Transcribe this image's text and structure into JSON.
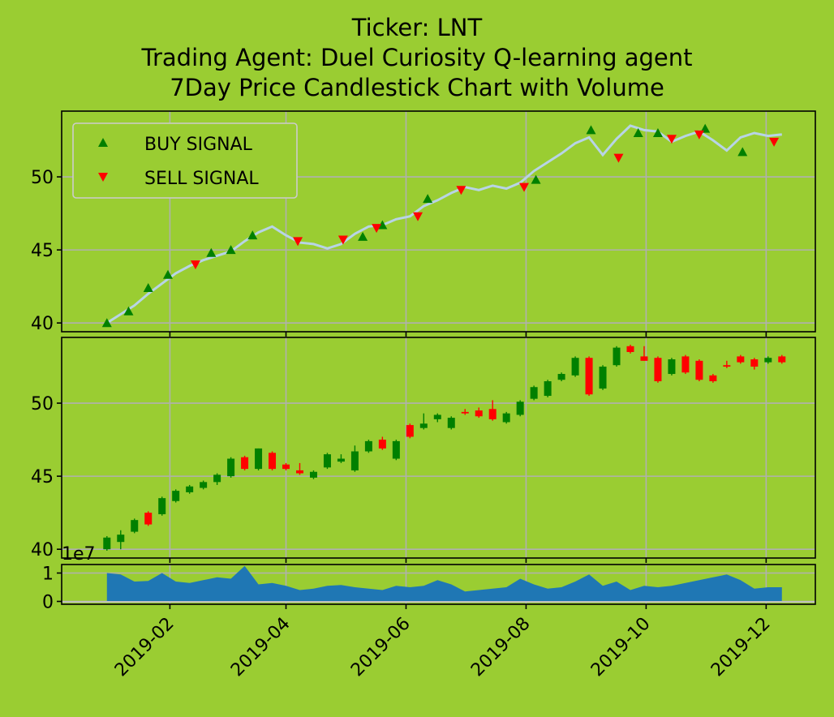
{
  "title": {
    "line1": "Ticker: LNT",
    "line2": "Trading Agent: Duel Curiosity Q-learning agent",
    "line3": "7Day Price Candlestick Chart with Volume"
  },
  "colors": {
    "background": "#9acd32",
    "price_line": "#b8d4e6",
    "buy": "#008000",
    "sell": "#ff0000",
    "volume": "#1f77b4",
    "grid": "#b0b0b0"
  },
  "chart_data": [
    {
      "type": "line",
      "panel": "price",
      "legend": [
        "BUY SIGNAL",
        "SELL SIGNAL"
      ],
      "legend_position": "top-left",
      "ylim": [
        39.4,
        54.5
      ],
      "yticks": [
        "40",
        "45",
        "50"
      ],
      "grid": true,
      "price": [
        [
          "2018-12-31",
          40.0
        ],
        [
          "2019-01-07",
          40.6
        ],
        [
          "2019-01-14",
          41.2
        ],
        [
          "2019-01-21",
          42.0
        ],
        [
          "2019-01-28",
          42.7
        ],
        [
          "2019-02-04",
          43.4
        ],
        [
          "2019-02-11",
          43.9
        ],
        [
          "2019-02-18",
          44.3
        ],
        [
          "2019-02-25",
          44.6
        ],
        [
          "2019-03-04",
          44.9
        ],
        [
          "2019-03-11",
          45.6
        ],
        [
          "2019-03-18",
          46.2
        ],
        [
          "2019-03-25",
          46.6
        ],
        [
          "2019-04-01",
          46.0
        ],
        [
          "2019-04-08",
          45.5
        ],
        [
          "2019-04-15",
          45.4
        ],
        [
          "2019-04-22",
          45.1
        ],
        [
          "2019-04-29",
          45.4
        ],
        [
          "2019-05-06",
          46.1
        ],
        [
          "2019-05-13",
          46.6
        ],
        [
          "2019-05-20",
          46.7
        ],
        [
          "2019-05-27",
          47.1
        ],
        [
          "2019-06-03",
          47.3
        ],
        [
          "2019-06-10",
          48.0
        ],
        [
          "2019-06-17",
          48.4
        ],
        [
          "2019-06-24",
          48.9
        ],
        [
          "2019-07-01",
          49.3
        ],
        [
          "2019-07-08",
          49.1
        ],
        [
          "2019-07-15",
          49.4
        ],
        [
          "2019-07-22",
          49.2
        ],
        [
          "2019-07-29",
          49.6
        ],
        [
          "2019-08-05",
          50.4
        ],
        [
          "2019-08-12",
          51.0
        ],
        [
          "2019-08-19",
          51.6
        ],
        [
          "2019-08-26",
          52.3
        ],
        [
          "2019-09-02",
          52.7
        ],
        [
          "2019-09-09",
          51.5
        ],
        [
          "2019-09-16",
          52.6
        ],
        [
          "2019-09-23",
          53.5
        ],
        [
          "2019-09-30",
          53.2
        ],
        [
          "2019-10-07",
          53.1
        ],
        [
          "2019-10-14",
          52.4
        ],
        [
          "2019-10-21",
          52.8
        ],
        [
          "2019-10-28",
          53.1
        ],
        [
          "2019-11-04",
          52.5
        ],
        [
          "2019-11-11",
          51.8
        ],
        [
          "2019-11-18",
          52.7
        ],
        [
          "2019-11-25",
          53.0
        ],
        [
          "2019-12-02",
          52.8
        ],
        [
          "2019-12-09",
          52.9
        ]
      ],
      "buy_signals": [
        [
          "2018-12-31",
          40.0
        ],
        [
          "2019-01-11",
          40.8
        ],
        [
          "2019-01-21",
          42.4
        ],
        [
          "2019-01-31",
          43.3
        ],
        [
          "2019-02-22",
          44.8
        ],
        [
          "2019-03-04",
          45.0
        ],
        [
          "2019-03-15",
          46.0
        ],
        [
          "2019-05-10",
          45.9
        ],
        [
          "2019-05-20",
          46.7
        ],
        [
          "2019-06-12",
          48.5
        ],
        [
          "2019-08-06",
          49.8
        ],
        [
          "2019-09-03",
          53.2
        ],
        [
          "2019-09-27",
          53.0
        ],
        [
          "2019-10-07",
          53.0
        ],
        [
          "2019-10-31",
          53.3
        ],
        [
          "2019-11-19",
          51.7
        ]
      ],
      "sell_signals": [
        [
          "2019-02-14",
          44.0
        ],
        [
          "2019-04-07",
          45.6
        ],
        [
          "2019-04-30",
          45.7
        ],
        [
          "2019-05-17",
          46.5
        ],
        [
          "2019-06-07",
          47.3
        ],
        [
          "2019-06-29",
          49.1
        ],
        [
          "2019-07-31",
          49.3
        ],
        [
          "2019-09-17",
          51.3
        ],
        [
          "2019-10-14",
          52.6
        ],
        [
          "2019-10-28",
          52.9
        ],
        [
          "2019-12-05",
          52.4
        ]
      ]
    },
    {
      "type": "candlestick",
      "panel": "ohlc",
      "ylim": [
        39.4,
        54.5
      ],
      "yticks": [
        "40",
        "45",
        "50"
      ],
      "grid": true,
      "candles": [
        [
          "2018-12-31",
          40.0,
          40.9,
          39.9,
          40.8
        ],
        [
          "2019-01-07",
          40.5,
          41.3,
          40.0,
          41.0
        ],
        [
          "2019-01-14",
          41.2,
          42.1,
          41.1,
          42.0
        ],
        [
          "2019-01-21",
          42.5,
          42.6,
          41.6,
          41.7
        ],
        [
          "2019-01-28",
          42.4,
          43.6,
          42.3,
          43.5
        ],
        [
          "2019-02-04",
          43.3,
          44.1,
          43.2,
          44.0
        ],
        [
          "2019-02-11",
          43.9,
          44.4,
          43.8,
          44.3
        ],
        [
          "2019-02-18",
          44.2,
          44.7,
          44.1,
          44.6
        ],
        [
          "2019-02-25",
          44.6,
          45.2,
          44.4,
          45.1
        ],
        [
          "2019-03-04",
          45.0,
          46.3,
          44.9,
          46.2
        ],
        [
          "2019-03-11",
          46.3,
          46.4,
          45.4,
          45.5
        ],
        [
          "2019-03-18",
          45.5,
          46.9,
          45.4,
          46.9
        ],
        [
          "2019-03-25",
          46.6,
          46.7,
          45.4,
          45.5
        ],
        [
          "2019-04-01",
          45.8,
          45.9,
          45.4,
          45.5
        ],
        [
          "2019-04-08",
          45.4,
          45.9,
          45.1,
          45.2
        ],
        [
          "2019-04-15",
          44.9,
          45.4,
          44.8,
          45.3
        ],
        [
          "2019-04-22",
          45.6,
          46.6,
          45.5,
          46.5
        ],
        [
          "2019-04-29",
          46.0,
          46.5,
          45.9,
          46.2
        ],
        [
          "2019-05-06",
          45.4,
          47.1,
          45.3,
          46.7
        ],
        [
          "2019-05-13",
          46.7,
          47.5,
          46.6,
          47.4
        ],
        [
          "2019-05-20",
          47.5,
          47.7,
          46.8,
          46.9
        ],
        [
          "2019-05-27",
          46.2,
          47.5,
          46.1,
          47.4
        ],
        [
          "2019-06-03",
          48.5,
          48.6,
          47.6,
          47.7
        ],
        [
          "2019-06-10",
          48.3,
          49.3,
          48.2,
          48.6
        ],
        [
          "2019-06-17",
          48.9,
          49.3,
          48.7,
          49.2
        ],
        [
          "2019-06-24",
          48.3,
          49.1,
          48.2,
          49.0
        ],
        [
          "2019-07-01",
          49.4,
          49.6,
          49.2,
          49.3
        ],
        [
          "2019-07-08",
          49.5,
          49.7,
          49.0,
          49.1
        ],
        [
          "2019-07-15",
          49.6,
          50.2,
          48.8,
          48.9
        ],
        [
          "2019-07-22",
          48.7,
          49.4,
          48.6,
          49.3
        ],
        [
          "2019-07-29",
          49.2,
          50.2,
          49.1,
          50.1
        ],
        [
          "2019-08-05",
          50.3,
          51.2,
          50.2,
          51.1
        ],
        [
          "2019-08-12",
          50.5,
          51.6,
          50.4,
          51.5
        ],
        [
          "2019-08-19",
          51.6,
          52.1,
          51.5,
          52.0
        ],
        [
          "2019-08-26",
          51.9,
          53.2,
          51.8,
          53.1
        ],
        [
          "2019-09-02",
          53.1,
          53.2,
          50.5,
          50.6
        ],
        [
          "2019-09-09",
          51.0,
          52.6,
          50.9,
          52.5
        ],
        [
          "2019-09-16",
          52.6,
          53.9,
          52.5,
          53.8
        ],
        [
          "2019-09-23",
          53.9,
          54.0,
          53.4,
          53.5
        ],
        [
          "2019-09-30",
          53.2,
          53.9,
          52.9,
          52.9
        ],
        [
          "2019-10-07",
          53.1,
          53.2,
          51.4,
          51.5
        ],
        [
          "2019-10-14",
          52.0,
          53.1,
          51.9,
          53.0
        ],
        [
          "2019-10-21",
          53.2,
          53.3,
          52.0,
          52.1
        ],
        [
          "2019-10-28",
          52.9,
          53.0,
          51.5,
          51.6
        ],
        [
          "2019-11-04",
          51.9,
          52.0,
          51.4,
          51.5
        ],
        [
          "2019-11-11",
          52.6,
          52.9,
          52.4,
          52.5
        ],
        [
          "2019-11-18",
          53.2,
          53.3,
          52.7,
          52.8
        ],
        [
          "2019-11-25",
          53.0,
          53.1,
          52.3,
          52.5
        ],
        [
          "2019-12-02",
          52.8,
          53.2,
          52.7,
          53.1
        ],
        [
          "2019-12-09",
          53.2,
          53.3,
          52.7,
          52.8
        ]
      ]
    },
    {
      "type": "area",
      "panel": "volume",
      "scale_label": "1e7",
      "ylim": [
        -0.1,
        1.3
      ],
      "yticks": [
        "0",
        "1"
      ],
      "grid": true,
      "x": [
        "2018-12-31",
        "2019-01-07",
        "2019-01-14",
        "2019-01-21",
        "2019-01-28",
        "2019-02-04",
        "2019-02-11",
        "2019-02-18",
        "2019-02-25",
        "2019-03-04",
        "2019-03-11",
        "2019-03-18",
        "2019-03-25",
        "2019-04-01",
        "2019-04-08",
        "2019-04-15",
        "2019-04-22",
        "2019-04-29",
        "2019-05-06",
        "2019-05-13",
        "2019-05-20",
        "2019-05-27",
        "2019-06-03",
        "2019-06-10",
        "2019-06-17",
        "2019-06-24",
        "2019-07-01",
        "2019-07-08",
        "2019-07-15",
        "2019-07-22",
        "2019-07-29",
        "2019-08-05",
        "2019-08-12",
        "2019-08-19",
        "2019-08-26",
        "2019-09-02",
        "2019-09-09",
        "2019-09-16",
        "2019-09-23",
        "2019-09-30",
        "2019-10-07",
        "2019-10-14",
        "2019-10-21",
        "2019-10-28",
        "2019-11-04",
        "2019-11-11",
        "2019-11-18",
        "2019-11-25",
        "2019-12-02",
        "2019-12-09"
      ],
      "values": [
        1.0,
        0.95,
        0.7,
        0.72,
        1.0,
        0.7,
        0.65,
        0.75,
        0.85,
        0.8,
        1.25,
        0.6,
        0.65,
        0.55,
        0.4,
        0.45,
        0.55,
        0.58,
        0.5,
        0.45,
        0.4,
        0.55,
        0.5,
        0.55,
        0.75,
        0.6,
        0.35,
        0.4,
        0.45,
        0.5,
        0.8,
        0.6,
        0.45,
        0.5,
        0.7,
        0.95,
        0.55,
        0.7,
        0.4,
        0.55,
        0.5,
        0.55,
        0.65,
        0.75,
        0.85,
        0.95,
        0.75,
        0.45,
        0.5,
        0.5
      ]
    }
  ],
  "x_axis": {
    "ticks": [
      {
        "label": "2019-02",
        "date": "2019-02-01"
      },
      {
        "label": "2019-04",
        "date": "2019-04-01"
      },
      {
        "label": "2019-06",
        "date": "2019-06-01"
      },
      {
        "label": "2019-08",
        "date": "2019-08-01"
      },
      {
        "label": "2019-10",
        "date": "2019-10-01"
      },
      {
        "label": "2019-12",
        "date": "2019-12-01"
      }
    ],
    "xlim": [
      "2018-12-08",
      "2019-12-26"
    ]
  }
}
